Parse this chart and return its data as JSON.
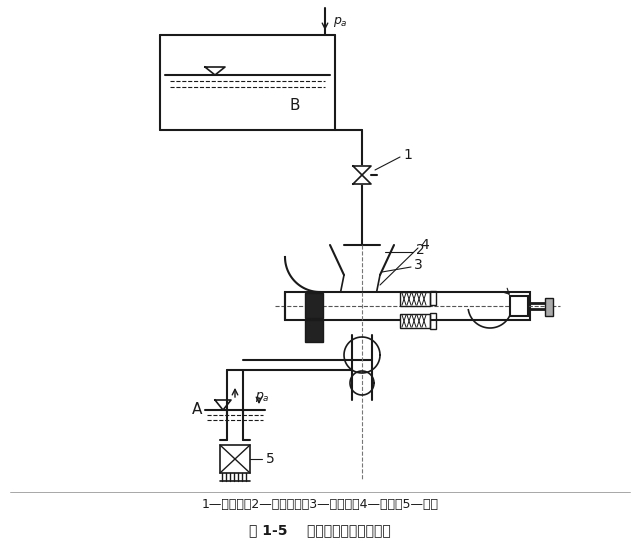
{
  "caption_line1": "1—调节阀；2—排出管路；3—压水室；4—叶轮；5—底阀",
  "caption_line2": "图 1-5    离心泵的工作装置简图",
  "bg_color": "#ffffff",
  "line_color": "#1a1a1a"
}
